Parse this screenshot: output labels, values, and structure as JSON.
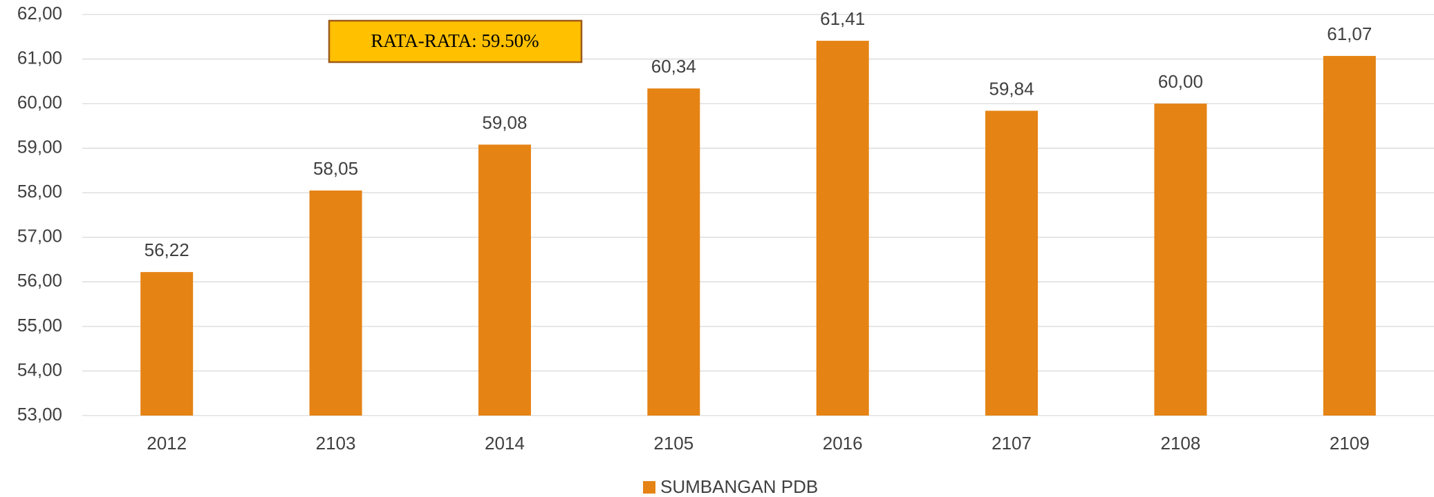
{
  "chart_data": {
    "type": "bar",
    "categories": [
      "2012",
      "2103",
      "2014",
      "2105",
      "2016",
      "2107",
      "2108",
      "2109"
    ],
    "series": [
      {
        "name": "SUMBANGAN PDB",
        "color": "#e58314",
        "values": [
          56.22,
          58.05,
          59.08,
          60.34,
          61.41,
          59.84,
          60.0,
          61.07
        ],
        "value_labels": [
          "56,22",
          "58,05",
          "59,08",
          "60,34",
          "61,41",
          "59,84",
          "60,00",
          "61,07"
        ]
      }
    ],
    "ylim": [
      53,
      62
    ],
    "yticks": [
      {
        "value": 53,
        "label": "53,00"
      },
      {
        "value": 54,
        "label": "54,00"
      },
      {
        "value": 55,
        "label": "55,00"
      },
      {
        "value": 56,
        "label": "56,00"
      },
      {
        "value": 57,
        "label": "57,00"
      },
      {
        "value": 58,
        "label": "58,00"
      },
      {
        "value": 59,
        "label": "59,00"
      },
      {
        "value": 60,
        "label": "60,00"
      },
      {
        "value": 61,
        "label": "61,00"
      },
      {
        "value": 62,
        "label": "62,00"
      }
    ],
    "grid": true,
    "annotation": "RATA-RATA: 59.50%",
    "legend": "bottom"
  }
}
